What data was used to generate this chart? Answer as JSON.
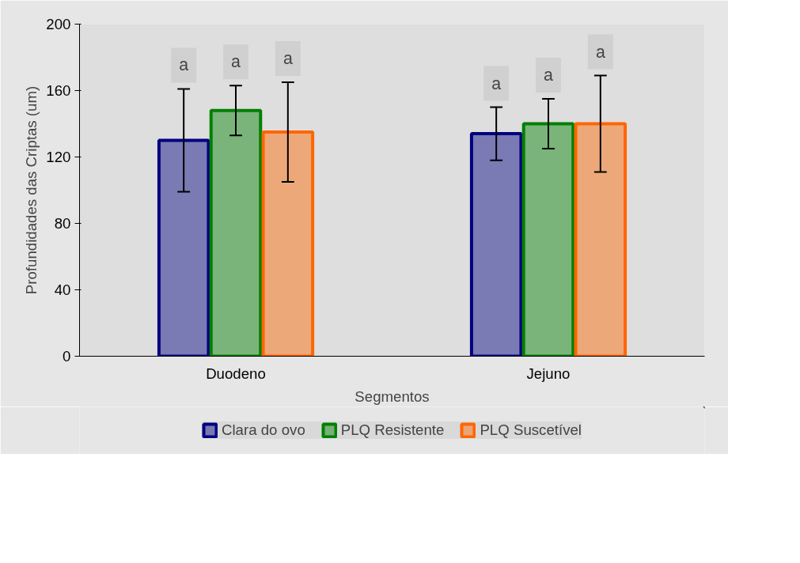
{
  "chart_data": {
    "type": "bar",
    "xlabel": "Segmentos",
    "ylabel": "Profundidades das Criptas (um)",
    "categories": [
      "Duodeno",
      "Jejuno"
    ],
    "series": [
      {
        "name": "Clara do ovo",
        "color": "#000080",
        "values": [
          130,
          134
        ],
        "errors": [
          31,
          16
        ]
      },
      {
        "name": "PLQ Resistente",
        "color": "#008000",
        "values": [
          148,
          140
        ],
        "errors": [
          15,
          15
        ]
      },
      {
        "name": "PLQ Suscetível",
        "color": "#ff6600",
        "values": [
          135,
          140
        ],
        "errors": [
          30,
          29
        ]
      }
    ],
    "ylim": [
      0,
      200
    ],
    "yticks": [
      0,
      40,
      80,
      120,
      160,
      200
    ],
    "grid": false,
    "legend": "bottom",
    "annotations": [
      "a",
      "a",
      "a",
      "a",
      "a",
      "a"
    ]
  }
}
